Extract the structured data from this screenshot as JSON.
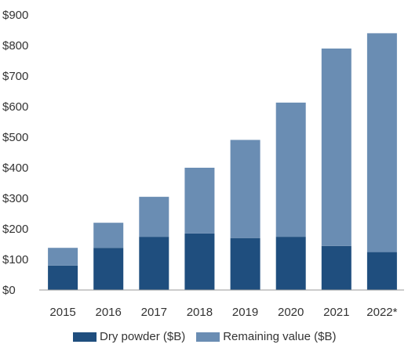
{
  "colors": {
    "dry_powder": "#1f4e7e",
    "remaining_value": "#6a8db3",
    "baseline": "#999999",
    "text": "#333333"
  },
  "chart_data": {
    "type": "bar",
    "stacked": true,
    "categories": [
      "2015",
      "2016",
      "2017",
      "2018",
      "2019",
      "2020",
      "2021",
      "2022*"
    ],
    "series": [
      {
        "name": "Dry powder ($B)",
        "values": [
          80,
          138,
          174,
          185,
          170,
          174,
          144,
          124
        ]
      },
      {
        "name": "Remaining value ($B)",
        "values": [
          58,
          82,
          131,
          215,
          321,
          439,
          646,
          716
        ]
      }
    ],
    "ylim": [
      0,
      900
    ],
    "yticks": [
      0,
      100,
      200,
      300,
      400,
      500,
      600,
      700,
      800,
      900
    ],
    "ytick_labels": [
      "$0",
      "$100",
      "$200",
      "$300",
      "$400",
      "$500",
      "$600",
      "$700",
      "$800",
      "$900"
    ],
    "grid": false,
    "legend_position": "bottom"
  },
  "legend": {
    "items": [
      "Dry powder ($B)",
      "Remaining value ($B)"
    ]
  }
}
